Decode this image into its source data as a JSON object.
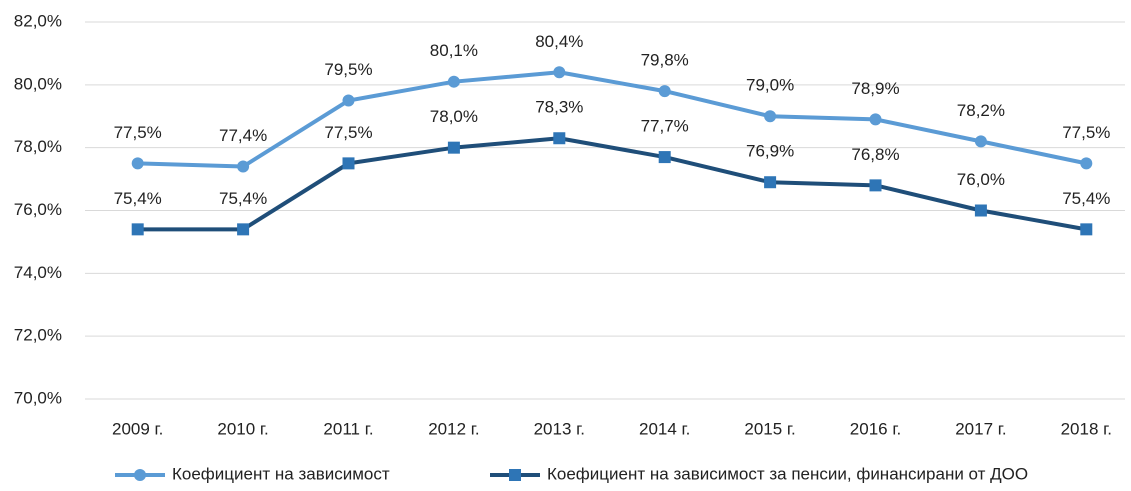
{
  "chart_data": {
    "type": "line",
    "categories": [
      "2009 г.",
      "2010 г.",
      "2011 г.",
      "2012 г.",
      "2013 г.",
      "2014 г.",
      "2015 г.",
      "2016 г.",
      "2017 г.",
      "2018 г."
    ],
    "series": [
      {
        "name": "Коефициент на зависимост",
        "color": "#5b9bd5",
        "marker": "circle",
        "marker_color": "#5b9bd5",
        "values": [
          77.5,
          77.4,
          79.5,
          80.1,
          80.4,
          79.8,
          79.0,
          78.9,
          78.2,
          77.5
        ],
        "value_labels": [
          "77,5%",
          "77,4%",
          "79,5%",
          "80,1%",
          "80,4%",
          "79,8%",
          "79,0%",
          "78,9%",
          "78,2%",
          "77,5%"
        ]
      },
      {
        "name": "Коефициент на зависимост за пенсии, финансирани от ДОО",
        "color": "#1f4e79",
        "marker": "square",
        "marker_color": "#2e75b6",
        "values": [
          75.4,
          75.4,
          77.5,
          78.0,
          78.3,
          77.7,
          76.9,
          76.8,
          76.0,
          75.4
        ],
        "value_labels": [
          "75,4%",
          "75,4%",
          "77,5%",
          "78,0%",
          "78,3%",
          "77,7%",
          "76,9%",
          "76,8%",
          "76,0%",
          "75,4%"
        ]
      }
    ],
    "ylim": [
      70,
      82
    ],
    "yticks": [
      {
        "value": 70,
        "label": "70,0%"
      },
      {
        "value": 72,
        "label": "72,0%"
      },
      {
        "value": 74,
        "label": "74,0%"
      },
      {
        "value": 76,
        "label": "76,0%"
      },
      {
        "value": 78,
        "label": "78,0%"
      },
      {
        "value": 80,
        "label": "80,0%"
      },
      {
        "value": 82,
        "label": "82,0%"
      }
    ],
    "grid": true,
    "legend": "bottom"
  }
}
